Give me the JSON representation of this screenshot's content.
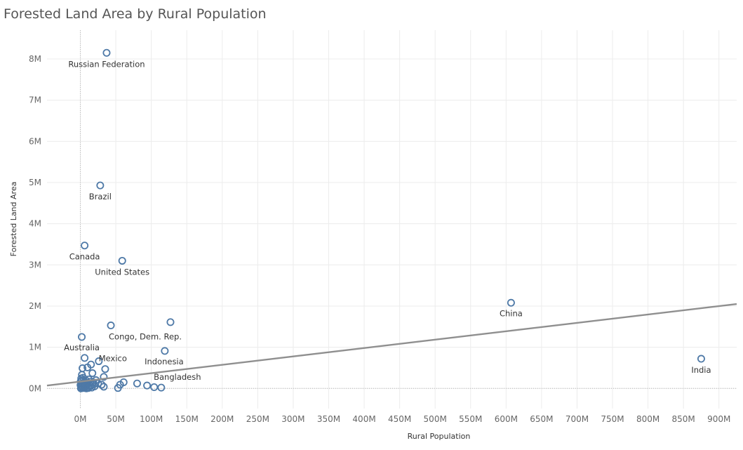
{
  "chart_data": {
    "type": "scatter",
    "title": "Forested Land Area by Rural Population",
    "xlabel": "Rural Population",
    "ylabel": "Forested Land Area",
    "xlim": [
      -47,
      925
    ],
    "ylim": [
      -490000,
      8700000
    ],
    "x_unit": "M",
    "x_ticks": [
      "0M",
      "50M",
      "100M",
      "150M",
      "200M",
      "250M",
      "300M",
      "350M",
      "400M",
      "450M",
      "500M",
      "550M",
      "600M",
      "650M",
      "700M",
      "750M",
      "800M",
      "850M",
      "900M"
    ],
    "y_ticks": [
      "0M",
      "1M",
      "2M",
      "3M",
      "4M",
      "5M",
      "6M",
      "7M",
      "8M"
    ],
    "x_tick_values": [
      0,
      50,
      100,
      150,
      200,
      250,
      300,
      350,
      400,
      450,
      500,
      550,
      600,
      650,
      700,
      750,
      800,
      850,
      900
    ],
    "y_tick_values": [
      0,
      1000000,
      2000000,
      3000000,
      4000000,
      5000000,
      6000000,
      7000000,
      8000000
    ],
    "grid": true,
    "point_color": "#4e79a7",
    "trend_color": "#8f8f8f",
    "trend_line": {
      "x": [
        -47,
        925
      ],
      "y": [
        70000,
        2050000
      ]
    },
    "labeled_points": [
      {
        "label": "Russian Federation",
        "x": 37,
        "y": 8150000
      },
      {
        "label": "Brazil",
        "x": 28,
        "y": 4930000
      },
      {
        "label": "Canada",
        "x": 6,
        "y": 3470000
      },
      {
        "label": "United States",
        "x": 59,
        "y": 3100000
      },
      {
        "label": "China",
        "x": 607,
        "y": 2080000
      },
      {
        "label": "Congo, Dem. Rep.",
        "x": 43,
        "y": 1530000
      },
      {
        "label": "Australia",
        "x": 2,
        "y": 1250000
      },
      {
        "label": "Mexico",
        "x": 26,
        "y": 660000
      },
      {
        "label": "Indonesia",
        "x": 119,
        "y": 910000
      },
      {
        "label": "Bangladesh",
        "x": 114,
        "y": 20000
      },
      {
        "label": "India",
        "x": 875,
        "y": 720000
      }
    ],
    "points": [
      {
        "x": 127,
        "y": 1610000
      },
      {
        "x": 6,
        "y": 740000
      },
      {
        "x": 35,
        "y": 470000
      },
      {
        "x": 15,
        "y": 580000
      },
      {
        "x": 10,
        "y": 510000
      },
      {
        "x": 3,
        "y": 490000
      },
      {
        "x": 17,
        "y": 370000
      },
      {
        "x": 33,
        "y": 280000
      },
      {
        "x": 22,
        "y": 200000
      },
      {
        "x": 61,
        "y": 150000
      },
      {
        "x": 80,
        "y": 120000
      },
      {
        "x": 94,
        "y": 70000
      },
      {
        "x": 104,
        "y": 30000
      },
      {
        "x": 53,
        "y": 10000
      },
      {
        "x": 56,
        "y": 90000
      },
      {
        "x": 33,
        "y": 40000
      },
      {
        "x": 30,
        "y": 90000
      },
      {
        "x": 25,
        "y": 120000
      },
      {
        "x": 20,
        "y": 50000
      },
      {
        "x": 18,
        "y": 150000
      },
      {
        "x": 16,
        "y": 20000
      },
      {
        "x": 14,
        "y": 160000
      },
      {
        "x": 13,
        "y": 80000
      },
      {
        "x": 12,
        "y": 220000
      },
      {
        "x": 11,
        "y": 30000
      },
      {
        "x": 10,
        "y": 120000
      },
      {
        "x": 9,
        "y": 60000
      },
      {
        "x": 8,
        "y": 190000
      },
      {
        "x": 7,
        "y": 100000
      },
      {
        "x": 6,
        "y": 10000
      },
      {
        "x": 5,
        "y": 140000
      },
      {
        "x": 4,
        "y": 260000
      },
      {
        "x": 3,
        "y": 50000
      },
      {
        "x": 2,
        "y": 110000
      },
      {
        "x": 1,
        "y": 20000
      },
      {
        "x": 0.5,
        "y": 170000
      },
      {
        "x": 1.5,
        "y": 60000
      },
      {
        "x": 2.5,
        "y": 200000
      },
      {
        "x": 3.5,
        "y": 10000
      },
      {
        "x": 4.5,
        "y": 90000
      },
      {
        "x": 5.5,
        "y": 40000
      },
      {
        "x": 6.5,
        "y": 160000
      },
      {
        "x": 7.5,
        "y": 70000
      },
      {
        "x": 8.5,
        "y": 0
      },
      {
        "x": 9.5,
        "y": 130000
      },
      {
        "x": 11.5,
        "y": 10000
      },
      {
        "x": 14.5,
        "y": 60000
      },
      {
        "x": 19,
        "y": 100000
      },
      {
        "x": 0.2,
        "y": 80000
      },
      {
        "x": 0.8,
        "y": 0
      },
      {
        "x": 2.2,
        "y": 330000
      },
      {
        "x": 1.2,
        "y": 240000
      }
    ]
  }
}
